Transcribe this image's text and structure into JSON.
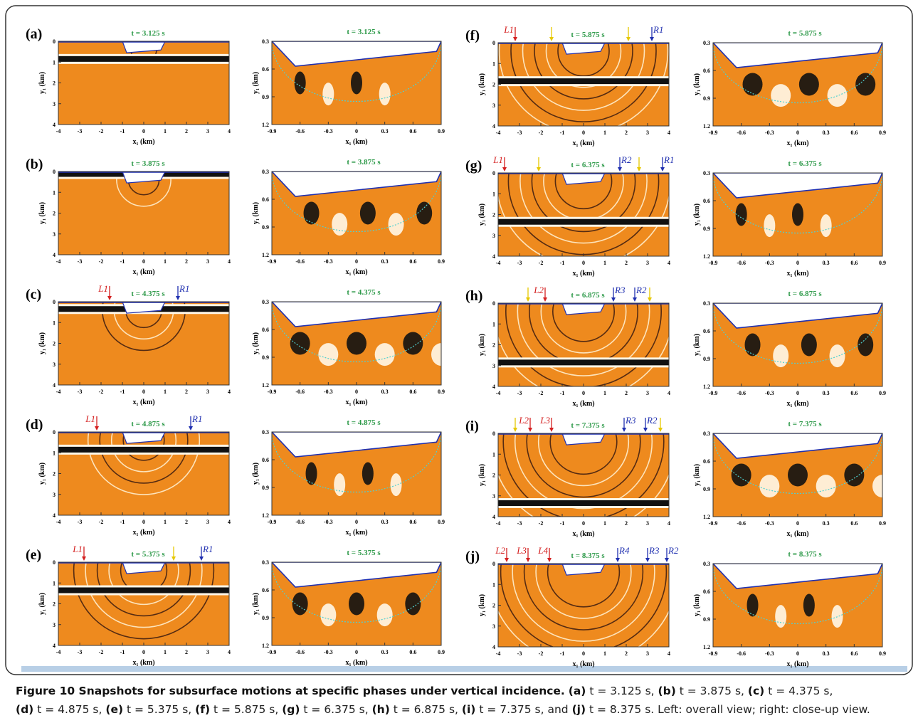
{
  "figure": {
    "x_label": "x₁ (km)",
    "y_label": "y₁ (km)",
    "overall_axes": {
      "xlim": [
        -4,
        4
      ],
      "ylim": [
        0,
        4
      ],
      "xticks": [
        -4,
        -3,
        -2,
        -1,
        0,
        1,
        2,
        3,
        4
      ],
      "yticks": [
        0,
        1,
        2,
        3,
        4
      ]
    },
    "closeup_axes": {
      "xlim": [
        -0.9,
        0.9
      ],
      "ylim": [
        0.3,
        1.2
      ],
      "xticks": [
        -0.9,
        -0.6,
        -0.3,
        0,
        0.3,
        0.6,
        0.9
      ],
      "yticks": [
        0.3,
        0.6,
        0.9,
        1.2
      ]
    },
    "panels": [
      {
        "letter": "(a)",
        "time": "t = 3.125 s",
        "markers": []
      },
      {
        "letter": "(b)",
        "time": "t = 3.875 s",
        "markers": []
      },
      {
        "letter": "(c)",
        "time": "t = 4.375 s",
        "markers": [
          {
            "label": "L1",
            "x": -1.6,
            "color": "#d42020"
          },
          {
            "label": "R1",
            "x": 1.6,
            "color": "#2030b0"
          }
        ]
      },
      {
        "letter": "(d)",
        "time": "t = 4.875 s",
        "markers": [
          {
            "label": "L1",
            "x": -2.2,
            "color": "#d42020"
          },
          {
            "label": "R1",
            "x": 2.2,
            "color": "#2030b0"
          }
        ]
      },
      {
        "letter": "(e)",
        "time": "t = 5.375 s",
        "markers": [
          {
            "label": "L1",
            "x": -2.8,
            "color": "#d42020"
          },
          {
            "x": 1.4,
            "color": "#e6c800"
          },
          {
            "label": "R1",
            "x": 2.7,
            "color": "#2030b0"
          }
        ]
      },
      {
        "letter": "(f)",
        "time": "t = 5.875 s",
        "markers": [
          {
            "label": "L1",
            "x": -3.2,
            "color": "#d42020"
          },
          {
            "x": -1.5,
            "color": "#e6c800"
          },
          {
            "x": 2.1,
            "color": "#e6c800"
          },
          {
            "label": "R1",
            "x": 3.2,
            "color": "#2030b0"
          }
        ]
      },
      {
        "letter": "(g)",
        "time": "t = 6.375 s",
        "markers": [
          {
            "label": "L1",
            "x": -3.7,
            "color": "#d42020"
          },
          {
            "x": -2.1,
            "color": "#e6c800"
          },
          {
            "label": "R2",
            "x": 1.7,
            "color": "#2030b0"
          },
          {
            "x": 2.6,
            "color": "#e6c800"
          },
          {
            "label": "R1",
            "x": 3.7,
            "color": "#2030b0"
          }
        ]
      },
      {
        "letter": "(h)",
        "time": "t = 6.875 s",
        "markers": [
          {
            "x": -2.6,
            "color": "#e6c800"
          },
          {
            "label": "L2",
            "x": -1.8,
            "color": "#d42020"
          },
          {
            "label": "R3",
            "x": 1.4,
            "color": "#2030b0"
          },
          {
            "label": "R2",
            "x": 2.4,
            "color": "#2030b0"
          },
          {
            "x": 3.1,
            "color": "#e6c800"
          }
        ]
      },
      {
        "letter": "(i)",
        "time": "t = 7.375 s",
        "markers": [
          {
            "x": -3.2,
            "color": "#e6c800"
          },
          {
            "label": "L2",
            "x": -2.5,
            "color": "#d42020"
          },
          {
            "label": "L3",
            "x": -1.5,
            "color": "#d42020"
          },
          {
            "label": "R3",
            "x": 1.9,
            "color": "#2030b0"
          },
          {
            "label": "R2",
            "x": 2.9,
            "color": "#2030b0"
          },
          {
            "x": 3.6,
            "color": "#e6c800"
          }
        ]
      },
      {
        "letter": "(j)",
        "time": "t = 8.375 s",
        "markers": [
          {
            "label": "L2",
            "x": -3.6,
            "color": "#d42020"
          },
          {
            "label": "L3",
            "x": -2.6,
            "color": "#d42020"
          },
          {
            "label": "L4",
            "x": -1.6,
            "color": "#d42020"
          },
          {
            "label": "R4",
            "x": 1.6,
            "color": "#2030b0"
          },
          {
            "label": "R3",
            "x": 3.0,
            "color": "#2030b0"
          },
          {
            "label": "R2",
            "x": 3.9,
            "color": "#2030b0"
          }
        ]
      }
    ]
  },
  "caption": {
    "title": "Figure 10 Snapshots for subsurface motions at specific phases under vertical incidence.",
    "items": [
      {
        "letter": "(a)",
        "text": "t = 3.125 s,"
      },
      {
        "letter": "(b)",
        "text": "t = 3.875 s,"
      },
      {
        "letter": "(c)",
        "text": "t = 4.375 s,"
      },
      {
        "letter": "(d)",
        "text": "t = 4.875 s,"
      },
      {
        "letter": "(e)",
        "text": "t = 5.375 s,"
      },
      {
        "letter": "(f)",
        "text": "t = 5.875 s,"
      },
      {
        "letter": "(g)",
        "text": "t = 6.375 s,"
      },
      {
        "letter": "(h)",
        "text": "t = 6.875 s,"
      },
      {
        "letter": "(i)",
        "text": "t = 7.375 s, and"
      },
      {
        "letter": "(j)",
        "text": "t = 8.375 s."
      }
    ],
    "tail": "Left: overall view; right: close-up view."
  }
}
